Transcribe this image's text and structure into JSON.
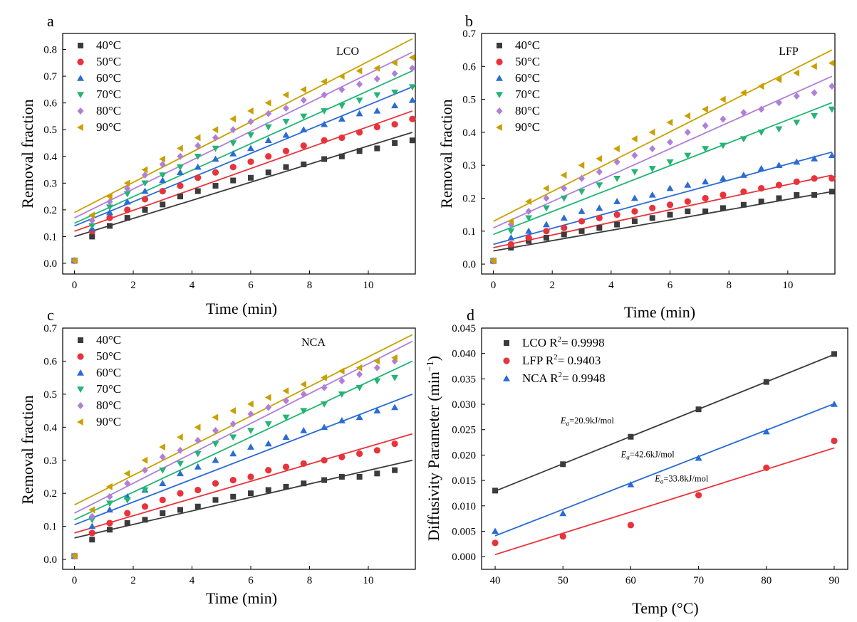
{
  "chart_data": [
    {
      "panel_label": "a",
      "type": "scatter",
      "annotation": "LCO",
      "xlabel": "Time (min)",
      "ylabel": "Removal fraction",
      "xlim": [
        -0.4,
        11.6
      ],
      "ylim": [
        -0.04,
        0.86
      ],
      "xticks": [
        0,
        2,
        4,
        6,
        8,
        10
      ],
      "yticks": [
        0.0,
        0.1,
        0.2,
        0.3,
        0.4,
        0.5,
        0.6,
        0.7,
        0.8
      ],
      "ytick_decimals": 1,
      "legend_position": "top-left",
      "x": [
        0,
        0.6,
        1.2,
        1.8,
        2.4,
        3.0,
        3.6,
        4.2,
        4.8,
        5.4,
        6.0,
        6.6,
        7.2,
        7.8,
        8.5,
        9.1,
        9.7,
        10.3,
        10.9,
        11.5
      ],
      "series": [
        {
          "name": "40°C",
          "color": "#3b3b3b",
          "marker": "square",
          "values": [
            0.01,
            0.1,
            0.14,
            0.17,
            0.2,
            0.22,
            0.25,
            0.27,
            0.29,
            0.31,
            0.32,
            0.34,
            0.36,
            0.37,
            0.39,
            0.4,
            0.42,
            0.43,
            0.45,
            0.46
          ],
          "fit": [
            0.1,
            0.49
          ]
        },
        {
          "name": "50°C",
          "color": "#e8333a",
          "marker": "circle",
          "values": [
            0.01,
            0.12,
            0.17,
            0.2,
            0.24,
            0.27,
            0.29,
            0.32,
            0.34,
            0.36,
            0.38,
            0.4,
            0.42,
            0.44,
            0.46,
            0.47,
            0.49,
            0.51,
            0.52,
            0.54
          ],
          "fit": [
            0.12,
            0.57
          ]
        },
        {
          "name": "60°C",
          "color": "#2b6cd4",
          "marker": "triangle-up",
          "values": [
            0.01,
            0.13,
            0.19,
            0.23,
            0.27,
            0.31,
            0.34,
            0.36,
            0.39,
            0.41,
            0.43,
            0.46,
            0.48,
            0.5,
            0.52,
            0.54,
            0.56,
            0.57,
            0.59,
            0.61
          ],
          "fit": [
            0.14,
            0.66
          ]
        },
        {
          "name": "70°C",
          "color": "#22b573",
          "marker": "triangle-down",
          "values": [
            0.01,
            0.14,
            0.21,
            0.26,
            0.3,
            0.33,
            0.36,
            0.4,
            0.43,
            0.45,
            0.48,
            0.51,
            0.53,
            0.55,
            0.57,
            0.59,
            0.61,
            0.63,
            0.64,
            0.66
          ],
          "fit": [
            0.15,
            0.72
          ]
        },
        {
          "name": "80°C",
          "color": "#b07fd8",
          "marker": "diamond",
          "values": [
            0.01,
            0.16,
            0.23,
            0.28,
            0.33,
            0.37,
            0.4,
            0.44,
            0.47,
            0.5,
            0.53,
            0.56,
            0.58,
            0.61,
            0.63,
            0.65,
            0.67,
            0.69,
            0.71,
            0.73
          ],
          "fit": [
            0.17,
            0.79
          ]
        },
        {
          "name": "90°C",
          "color": "#c9a000",
          "marker": "triangle-left",
          "values": [
            0.01,
            0.18,
            0.25,
            0.3,
            0.35,
            0.39,
            0.43,
            0.47,
            0.5,
            0.54,
            0.57,
            0.6,
            0.63,
            0.65,
            0.68,
            0.7,
            0.72,
            0.73,
            0.75,
            0.77
          ],
          "fit": [
            0.19,
            0.84
          ]
        }
      ]
    },
    {
      "panel_label": "b",
      "type": "scatter",
      "annotation": "LFP",
      "xlabel": "Time (min)",
      "ylabel": "Removal fraction",
      "xlim": [
        -0.4,
        11.6
      ],
      "ylim": [
        -0.03,
        0.7
      ],
      "xticks": [
        0,
        2,
        4,
        6,
        8,
        10
      ],
      "yticks": [
        0.0,
        0.1,
        0.2,
        0.3,
        0.4,
        0.5,
        0.6,
        0.7
      ],
      "ytick_decimals": 1,
      "legend_position": "top-left",
      "x": [
        0,
        0.6,
        1.2,
        1.8,
        2.4,
        3.0,
        3.6,
        4.2,
        4.8,
        5.4,
        6.0,
        6.6,
        7.2,
        7.8,
        8.5,
        9.1,
        9.7,
        10.3,
        10.9,
        11.5
      ],
      "series": [
        {
          "name": "40°C",
          "color": "#3b3b3b",
          "marker": "square",
          "values": [
            0.01,
            0.05,
            0.07,
            0.08,
            0.09,
            0.1,
            0.11,
            0.12,
            0.13,
            0.14,
            0.15,
            0.16,
            0.16,
            0.17,
            0.18,
            0.19,
            0.2,
            0.21,
            0.21,
            0.22
          ],
          "fit": [
            0.04,
            0.22
          ]
        },
        {
          "name": "50°C",
          "color": "#e8333a",
          "marker": "circle",
          "values": [
            0.01,
            0.06,
            0.08,
            0.1,
            0.11,
            0.13,
            0.14,
            0.15,
            0.16,
            0.17,
            0.18,
            0.19,
            0.2,
            0.21,
            0.22,
            0.23,
            0.24,
            0.25,
            0.26,
            0.26
          ],
          "fit": [
            0.05,
            0.27
          ]
        },
        {
          "name": "60°C",
          "color": "#2b6cd4",
          "marker": "triangle-up",
          "values": [
            0.01,
            0.08,
            0.1,
            0.12,
            0.14,
            0.16,
            0.17,
            0.19,
            0.2,
            0.21,
            0.23,
            0.24,
            0.25,
            0.26,
            0.27,
            0.29,
            0.3,
            0.31,
            0.32,
            0.33
          ],
          "fit": [
            0.06,
            0.34
          ]
        },
        {
          "name": "70°C",
          "color": "#22b573",
          "marker": "triangle-down",
          "values": [
            0.01,
            0.1,
            0.14,
            0.17,
            0.2,
            0.22,
            0.24,
            0.26,
            0.28,
            0.29,
            0.31,
            0.33,
            0.35,
            0.36,
            0.38,
            0.4,
            0.41,
            0.43,
            0.45,
            0.47
          ],
          "fit": [
            0.09,
            0.49
          ]
        },
        {
          "name": "80°C",
          "color": "#b07fd8",
          "marker": "diamond",
          "values": [
            0.01,
            0.12,
            0.16,
            0.2,
            0.23,
            0.26,
            0.28,
            0.31,
            0.33,
            0.35,
            0.37,
            0.4,
            0.42,
            0.44,
            0.46,
            0.47,
            0.49,
            0.51,
            0.52,
            0.54
          ],
          "fit": [
            0.11,
            0.57
          ]
        },
        {
          "name": "90°C",
          "color": "#c9a000",
          "marker": "triangle-left",
          "values": [
            0.01,
            0.13,
            0.19,
            0.23,
            0.27,
            0.3,
            0.32,
            0.35,
            0.38,
            0.4,
            0.43,
            0.45,
            0.47,
            0.5,
            0.52,
            0.54,
            0.56,
            0.58,
            0.6,
            0.61
          ],
          "fit": [
            0.13,
            0.65
          ]
        }
      ]
    },
    {
      "panel_label": "c",
      "type": "scatter",
      "annotation": "NCA",
      "xlabel": "Time (min)",
      "ylabel": "Removal fraction",
      "xlim": [
        -0.4,
        11.6
      ],
      "ylim": [
        -0.03,
        0.7
      ],
      "xticks": [
        0,
        2,
        4,
        6,
        8,
        10
      ],
      "yticks": [
        0.0,
        0.1,
        0.2,
        0.3,
        0.4,
        0.5,
        0.6,
        0.7
      ],
      "ytick_decimals": 1,
      "legend_position": "top-left",
      "x": [
        0,
        0.6,
        1.2,
        1.8,
        2.4,
        3.0,
        3.6,
        4.2,
        4.8,
        5.4,
        6.0,
        6.6,
        7.2,
        7.8,
        8.5,
        9.1,
        9.7,
        10.3,
        10.9
      ],
      "series": [
        {
          "name": "40°C",
          "color": "#3b3b3b",
          "marker": "square",
          "values": [
            0.01,
            0.06,
            0.09,
            0.11,
            0.12,
            0.14,
            0.15,
            0.16,
            0.18,
            0.19,
            0.2,
            0.21,
            0.22,
            0.23,
            0.24,
            0.25,
            0.25,
            0.26,
            0.27
          ],
          "fit": [
            0.065,
            0.3
          ]
        },
        {
          "name": "50°C",
          "color": "#e8333a",
          "marker": "circle",
          "values": [
            0.01,
            0.08,
            0.11,
            0.14,
            0.16,
            0.18,
            0.2,
            0.21,
            0.23,
            0.24,
            0.25,
            0.27,
            0.28,
            0.29,
            0.3,
            0.31,
            0.32,
            0.33,
            0.35
          ],
          "fit": [
            0.08,
            0.38
          ]
        },
        {
          "name": "60°C",
          "color": "#2b6cd4",
          "marker": "triangle-up",
          "values": [
            0.01,
            0.1,
            0.15,
            0.19,
            0.21,
            0.23,
            0.26,
            0.28,
            0.3,
            0.32,
            0.34,
            0.35,
            0.37,
            0.39,
            0.4,
            0.42,
            0.43,
            0.45,
            0.46
          ],
          "fit": [
            0.105,
            0.5
          ]
        },
        {
          "name": "70°C",
          "color": "#22b573",
          "marker": "triangle-down",
          "values": [
            0.01,
            0.12,
            0.17,
            0.18,
            0.21,
            0.27,
            0.29,
            0.32,
            0.35,
            0.37,
            0.39,
            0.41,
            0.43,
            0.45,
            0.47,
            0.5,
            0.52,
            0.54,
            0.55
          ],
          "fit": [
            0.12,
            0.6
          ]
        },
        {
          "name": "80°C",
          "color": "#b07fd8",
          "marker": "diamond",
          "values": [
            0.01,
            0.13,
            0.19,
            0.23,
            0.27,
            0.31,
            0.33,
            0.36,
            0.39,
            0.41,
            0.44,
            0.46,
            0.48,
            0.5,
            0.52,
            0.54,
            0.56,
            0.58,
            0.6
          ],
          "fit": [
            0.14,
            0.66
          ]
        },
        {
          "name": "90°C",
          "color": "#c9a000",
          "marker": "triangle-left",
          "values": [
            0.01,
            0.15,
            0.22,
            0.26,
            0.3,
            0.34,
            0.37,
            0.4,
            0.43,
            0.45,
            0.47,
            0.49,
            0.51,
            0.53,
            0.55,
            0.57,
            0.58,
            0.6,
            0.61
          ],
          "fit": [
            0.165,
            0.68
          ]
        }
      ]
    },
    {
      "panel_label": "d",
      "type": "scatter",
      "xlabel": "Temp (°C)",
      "ylabel": "Diffusivity Parameter (min",
      "ylabel_superscript": "−1",
      "ylabel_suffix": ")",
      "xlim": [
        38,
        92
      ],
      "ylim": [
        -0.0025,
        0.045
      ],
      "xticks": [
        40,
        50,
        60,
        70,
        80,
        90
      ],
      "yticks": [
        0.0,
        0.005,
        0.01,
        0.015,
        0.02,
        0.025,
        0.03,
        0.035,
        0.04,
        0.045
      ],
      "ytick_decimals": 3,
      "legend_position": "top-left",
      "x": [
        40,
        50,
        60,
        70,
        80,
        90
      ],
      "series": [
        {
          "name": "LCO",
          "r2_text": "R",
          "r2_sup": "2",
          "r2_value": "= 0.9998",
          "color": "#3b3b3b",
          "marker": "square",
          "values": [
            0.013,
            0.0182,
            0.0236,
            0.029,
            0.0344,
            0.0399
          ],
          "fit": [
            0.0129,
            0.0398
          ]
        },
        {
          "name": "LFP",
          "r2_text": "R",
          "r2_sup": "2",
          "r2_value": "= 0.9403",
          "color": "#e8333a",
          "marker": "circle",
          "values": [
            0.0027,
            0.004,
            0.0062,
            0.0121,
            0.0175,
            0.0228
          ],
          "fit": [
            0.0004,
            0.0214
          ]
        },
        {
          "name": "NCA",
          "r2_text": "R",
          "r2_sup": "2",
          "r2_value": "= 0.9948",
          "color": "#2b6cd4",
          "marker": "triangle-up",
          "values": [
            0.005,
            0.0085,
            0.0142,
            0.0194,
            0.0246,
            0.03
          ],
          "fit": [
            0.0041,
            0.0301
          ]
        }
      ],
      "annotations": [
        {
          "base": "E",
          "sub": "a",
          "text": "=20.9kJ/mol",
          "x": 53.6,
          "y": 0.0262
        },
        {
          "base": "E",
          "sub": "a",
          "text": "=42.6kJ/mol",
          "x": 62.5,
          "y": 0.0196
        },
        {
          "base": "E",
          "sub": "a",
          "text": "=33.8kJ/mol",
          "x": 67.5,
          "y": 0.0148
        }
      ]
    }
  ]
}
